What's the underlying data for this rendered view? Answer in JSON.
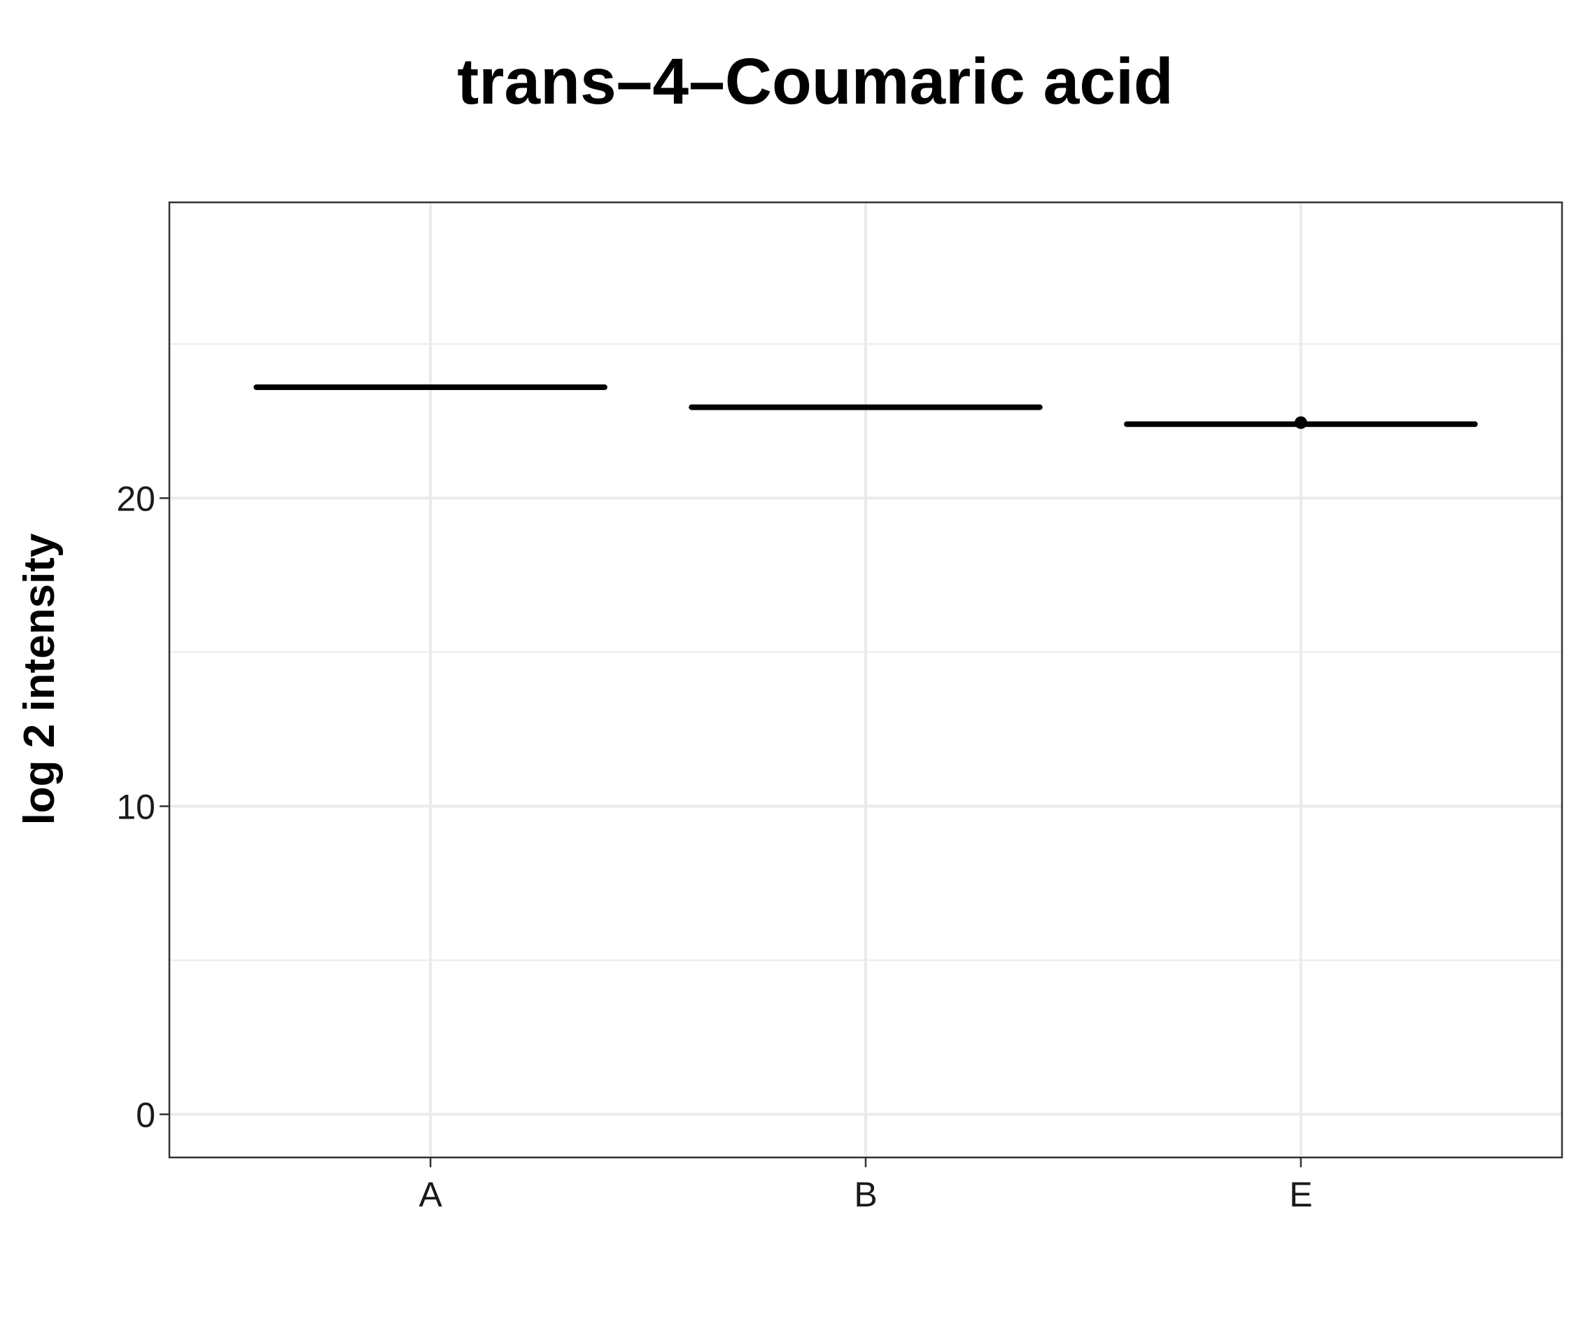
{
  "chart_data": {
    "type": "boxplot",
    "title": "trans–4–Coumaric acid",
    "xlabel": "",
    "ylabel": "log 2 intensity",
    "categories": [
      "A",
      "B",
      "E"
    ],
    "boxes": [
      {
        "category": "A",
        "median": 23.6,
        "q1": 23.6,
        "q3": 23.6,
        "min": 23.6,
        "max": 23.6,
        "outliers": []
      },
      {
        "category": "B",
        "median": 22.95,
        "q1": 22.95,
        "q3": 22.95,
        "min": 22.95,
        "max": 22.95,
        "outliers": []
      },
      {
        "category": "E",
        "median": 22.4,
        "q1": 22.4,
        "q3": 22.4,
        "min": 22.4,
        "max": 22.4,
        "outliers": [
          22.45
        ]
      }
    ],
    "ylim": [
      -1.4,
      29.6
    ],
    "yticks": [
      0,
      10,
      20
    ],
    "ytick_labels": [
      "0",
      "10",
      "20"
    ],
    "grid": true,
    "legend": "none",
    "colors": {
      "box": "#000000",
      "grid": "#ebebeb",
      "panel_border": "#333333"
    }
  }
}
